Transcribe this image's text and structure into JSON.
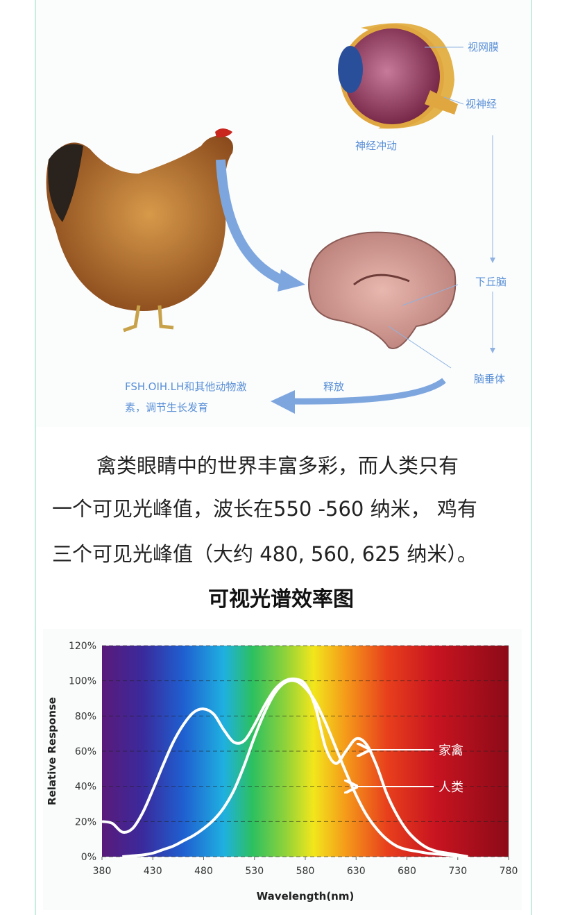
{
  "diagram": {
    "labels": {
      "retina": "视网膜",
      "optic_nerve": "视神经",
      "nerve_impulse": "神经冲动",
      "hypothalamus": "下丘脑",
      "pituitary": "脑垂体",
      "release": "释放",
      "hormones": [
        "FSH.OIH.LH和其他动物激",
        "素，调节生长发育"
      ]
    }
  },
  "paragraph": {
    "lines": [
      "禽类眼睛中的世界丰富多彩，而人类只有",
      "一个可见光峰值，波长在550 -560 纳米， 鸡有",
      "三个可见光峰值（大约 480, 560, 625 纳米）。"
    ]
  },
  "chart_data": {
    "type": "line",
    "title": "可视光谱效率图",
    "x_label": "Wavelength(nm)",
    "y_label": "Relative Response",
    "x": [
      380,
      390,
      400,
      410,
      420,
      430,
      440,
      450,
      460,
      470,
      480,
      490,
      500,
      510,
      520,
      530,
      540,
      550,
      560,
      570,
      580,
      590,
      600,
      610,
      620,
      630,
      640,
      650,
      660,
      670,
      680,
      690,
      700,
      710,
      720,
      730,
      740,
      750,
      760,
      770,
      780
    ],
    "series": [
      {
        "name": "家禽",
        "color": "#ffffff",
        "values": [
          20,
          19,
          14,
          16,
          25,
          38,
          52,
          65,
          75,
          82,
          84,
          81,
          72,
          65,
          66,
          75,
          86,
          95,
          100,
          101,
          98,
          85,
          62,
          53,
          60,
          67,
          64,
          52,
          36,
          24,
          15,
          9,
          5,
          3,
          2,
          1,
          0,
          null,
          null,
          null,
          null
        ]
      },
      {
        "name": "人类",
        "color": "#ffffff",
        "values": [
          null,
          null,
          0,
          0.5,
          1,
          2,
          4,
          6,
          9,
          12,
          16,
          21,
          28,
          38,
          52,
          68,
          82,
          93,
          99,
          100,
          96,
          88,
          76,
          62,
          48,
          35,
          24,
          16,
          10,
          6,
          4,
          3,
          2,
          1.5,
          1,
          0.5,
          0,
          null,
          null,
          null,
          null
        ]
      }
    ],
    "xlim": [
      380,
      780
    ],
    "xticks": [
      380,
      430,
      480,
      530,
      580,
      630,
      680,
      730,
      780
    ],
    "ylim": [
      0,
      120
    ],
    "yticks": [
      {
        "value": 0,
        "label": "0%"
      },
      {
        "value": 20,
        "label": "20%"
      },
      {
        "value": 40,
        "label": "40%"
      },
      {
        "value": 60,
        "label": "60%"
      },
      {
        "value": 80,
        "label": "80%"
      },
      {
        "value": 100,
        "label": "100%"
      },
      {
        "value": 120,
        "label": "120%"
      }
    ],
    "grid": true
  }
}
